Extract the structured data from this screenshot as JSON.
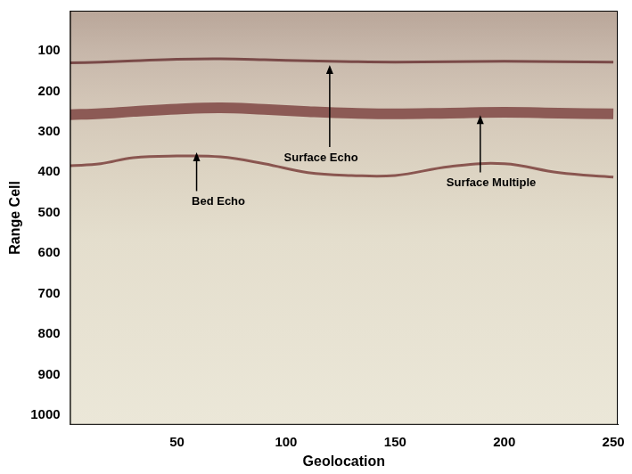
{
  "chart_data": {
    "type": "line",
    "x_label": "Geolocation",
    "y_label": "Range Cell",
    "x": [
      1,
      15,
      30,
      50,
      70,
      90,
      110,
      130,
      150,
      175,
      200,
      225,
      250
    ],
    "series": [
      {
        "name": "Surface Echo",
        "color": "#7a4a48",
        "values": [
          130,
          128,
          125,
          121,
          120,
          122,
          125,
          127,
          128,
          127,
          126,
          127,
          128
        ]
      },
      {
        "name": "Surface Multiple",
        "color": "#8c5a55",
        "values": [
          258,
          255,
          250,
          244,
          241,
          245,
          250,
          254,
          256,
          254,
          252,
          254,
          256
        ]
      },
      {
        "name": "Bed Echo",
        "color": "#8a5650",
        "values": [
          384,
          379,
          364,
          360,
          362,
          379,
          401,
          408,
          408,
          386,
          379,
          401,
          412
        ]
      }
    ],
    "xlim": [
      1,
      252
    ],
    "xticks": [
      50,
      100,
      150,
      200,
      250
    ],
    "ylim": [
      1024,
      1
    ],
    "yticks": [
      100,
      200,
      300,
      400,
      500,
      600,
      700,
      800,
      900,
      1000
    ],
    "grid": false,
    "annotations": [
      {
        "text": "Bed Echo",
        "x": 69,
        "y": 473,
        "arrow_x": 59,
        "arrow_y": 351
      },
      {
        "text": "Surface Echo",
        "x": 116,
        "y": 364,
        "arrow_x": 120,
        "arrow_y": 135
      },
      {
        "text": "Surface Multiple",
        "x": 194,
        "y": 427,
        "arrow_x": 189,
        "arrow_y": 259
      }
    ]
  }
}
